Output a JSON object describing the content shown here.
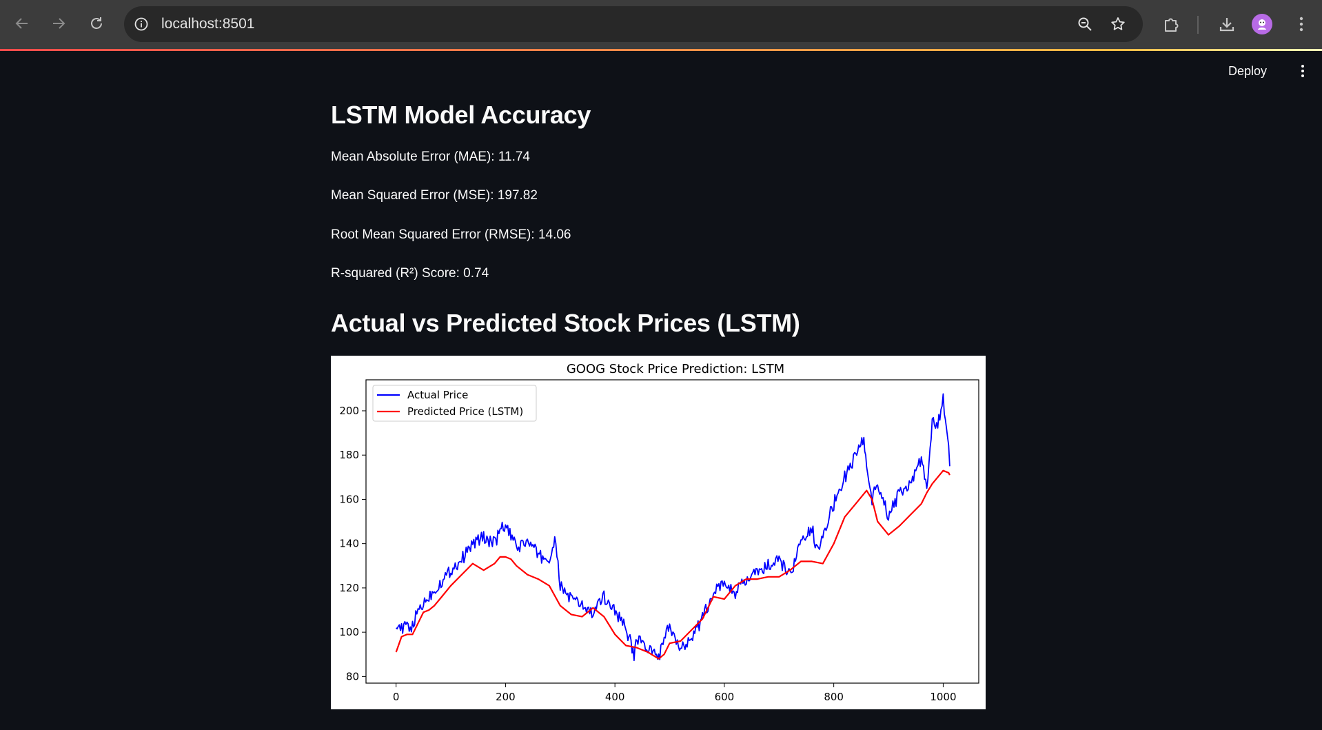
{
  "browser": {
    "url": "localhost:8501",
    "icons": {
      "back": "arrow-left-icon",
      "forward": "arrow-right-icon",
      "reload": "reload-icon",
      "site_info": "info-icon",
      "zoom": "zoom-icon",
      "bookmark": "star-icon",
      "extensions": "puzzle-icon",
      "downloads": "download-icon",
      "menu": "kebab-icon"
    }
  },
  "header": {
    "deploy_label": "Deploy"
  },
  "accuracy": {
    "title": "LSTM Model Accuracy",
    "mae": "Mean Absolute Error (MAE): 11.74",
    "mse": "Mean Squared Error (MSE): 197.82",
    "rmse": "Root Mean Squared Error (RMSE): 14.06",
    "r2": "R-squared (R²) Score: 0.74"
  },
  "chart_section": {
    "title": "Actual vs Predicted Stock Prices (LSTM)"
  },
  "colors": {
    "accent": "#ff4b4b",
    "background": "#0e1117",
    "actual_line": "#0000ff",
    "predicted_line": "#ff0000"
  },
  "chart_data": {
    "type": "line",
    "title": "GOOG Stock Price Prediction: LSTM",
    "xlabel": "",
    "ylabel": "",
    "xlim": [
      -55,
      1065
    ],
    "ylim": [
      77,
      214
    ],
    "xticks": [
      0,
      200,
      400,
      600,
      800,
      1000
    ],
    "yticks": [
      80,
      100,
      120,
      140,
      160,
      180,
      200
    ],
    "grid": false,
    "legend_position": "top-left",
    "series": [
      {
        "name": "Actual Price",
        "color": "#0000ff",
        "x": [
          0,
          10,
          20,
          30,
          40,
          50,
          60,
          80,
          100,
          120,
          140,
          160,
          180,
          190,
          200,
          210,
          220,
          240,
          260,
          280,
          290,
          300,
          320,
          340,
          360,
          380,
          400,
          420,
          435,
          440,
          460,
          480,
          500,
          510,
          520,
          540,
          560,
          580,
          600,
          620,
          640,
          660,
          680,
          700,
          720,
          740,
          760,
          770,
          780,
          800,
          820,
          840,
          855,
          860,
          870,
          880,
          900,
          920,
          940,
          960,
          970,
          980,
          990,
          1000,
          1010,
          1012
        ],
        "y": [
          105,
          101,
          103,
          102,
          110,
          113,
          116,
          122,
          128,
          133,
          140,
          143,
          140,
          146,
          148,
          143,
          138,
          141,
          135,
          132,
          142,
          121,
          115,
          112,
          108,
          116,
          110,
          102,
          90,
          98,
          92,
          89,
          103,
          95,
          93,
          98,
          106,
          118,
          122,
          118,
          123,
          127,
          130,
          132,
          126,
          140,
          147,
          137,
          145,
          158,
          170,
          180,
          188,
          175,
          160,
          168,
          152,
          163,
          167,
          178,
          165,
          195,
          193,
          205,
          186,
          175
        ]
      },
      {
        "name": "Predicted Price (LSTM)",
        "color": "#ff0000",
        "x": [
          0,
          10,
          20,
          30,
          40,
          50,
          60,
          70,
          80,
          100,
          120,
          140,
          160,
          180,
          190,
          200,
          210,
          220,
          240,
          260,
          280,
          300,
          310,
          320,
          340,
          360,
          380,
          400,
          420,
          440,
          460,
          480,
          490,
          500,
          520,
          540,
          560,
          580,
          600,
          620,
          640,
          660,
          680,
          700,
          720,
          740,
          760,
          780,
          800,
          820,
          840,
          860,
          870,
          880,
          900,
          920,
          940,
          960,
          970,
          980,
          1000,
          1010,
          1012
        ],
        "y": [
          91,
          98,
          99,
          99,
          104,
          109,
          110,
          112,
          115,
          121,
          126,
          131,
          128,
          131,
          134,
          134,
          133,
          130,
          126,
          124,
          121,
          112,
          110,
          108,
          107,
          111,
          107,
          99,
          94,
          93,
          91,
          88,
          90,
          95,
          96,
          101,
          106,
          116,
          115,
          121,
          124,
          124,
          125,
          125,
          128,
          132,
          132,
          131,
          140,
          152,
          158,
          164,
          160,
          150,
          144,
          148,
          153,
          158,
          163,
          167,
          173,
          172,
          171
        ]
      }
    ]
  }
}
